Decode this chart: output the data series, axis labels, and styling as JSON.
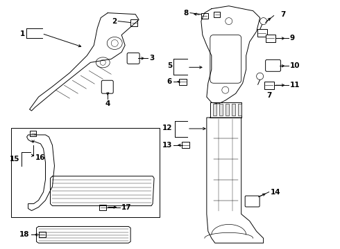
{
  "background_color": "#ffffff",
  "line_color": "#000000",
  "fig_width": 4.9,
  "fig_height": 3.6,
  "dpi": 100
}
